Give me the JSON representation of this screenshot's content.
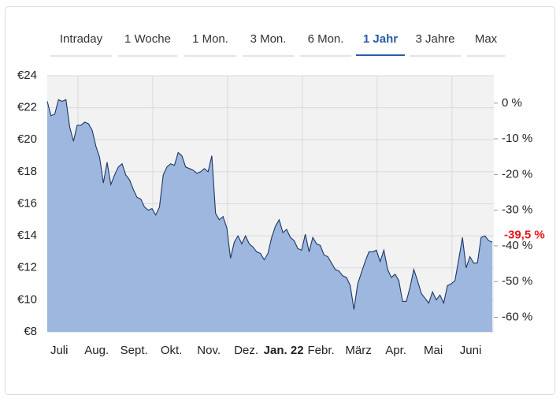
{
  "tabs": {
    "items": [
      "Intraday",
      "1 Woche",
      "1 Mon.",
      "3 Mon.",
      "6 Mon.",
      "1 Jahr",
      "3 Jahre",
      "Max"
    ],
    "active": 5
  },
  "chart_data": {
    "type": "area",
    "xlim": [
      0.18,
      12.12
    ],
    "xticks": [
      {
        "value": 0.5,
        "label": "Juli"
      },
      {
        "value": 1.5,
        "label": "Aug."
      },
      {
        "value": 2.5,
        "label": "Sept."
      },
      {
        "value": 3.5,
        "label": "Okt."
      },
      {
        "value": 4.5,
        "label": "Nov."
      },
      {
        "value": 5.5,
        "label": "Dez."
      },
      {
        "value": 6.5,
        "label": "Jan. 22",
        "bold": true
      },
      {
        "value": 7.5,
        "label": "Febr."
      },
      {
        "value": 8.5,
        "label": "März"
      },
      {
        "value": 9.5,
        "label": "Apr."
      },
      {
        "value": 10.5,
        "label": "Mai"
      },
      {
        "value": 11.5,
        "label": "Juni"
      }
    ],
    "xgrid": [
      1,
      3,
      5,
      7,
      9,
      11
    ],
    "ylim": [
      8,
      24
    ],
    "yticks": [
      {
        "value": 8,
        "label": "€8"
      },
      {
        "value": 10,
        "label": "€10"
      },
      {
        "value": 12,
        "label": "€12"
      },
      {
        "value": 14,
        "label": "€14"
      },
      {
        "value": 16,
        "label": "€16"
      },
      {
        "value": 18,
        "label": "€18"
      },
      {
        "value": 20,
        "label": "€20"
      },
      {
        "value": 22,
        "label": "€22"
      },
      {
        "value": 24,
        "label": "€24"
      }
    ],
    "y2lim": [
      -64.1,
      7.7
    ],
    "y2ticks": [
      {
        "value": 0,
        "label": "0 %"
      },
      {
        "value": -10,
        "label": "-10 %"
      },
      {
        "value": -20,
        "label": "-20 %"
      },
      {
        "value": -30,
        "label": "-30 %"
      },
      {
        "value": -40,
        "label": "-40 %"
      },
      {
        "value": -50,
        "label": "-50 %"
      },
      {
        "value": -60,
        "label": "-60 %"
      }
    ],
    "annotations": [
      {
        "value": -39.5,
        "label": "-39,5 %",
        "axis": "y2",
        "color": "#e8141b"
      }
    ],
    "grid": true,
    "line_color": "#1b3766",
    "fill_color": "#9db7de",
    "background": "#f2f2f2",
    "x": [
      0.18,
      0.28,
      0.38,
      0.48,
      0.58,
      0.68,
      0.78,
      0.88,
      0.98,
      1.08,
      1.18,
      1.28,
      1.38,
      1.48,
      1.58,
      1.68,
      1.78,
      1.88,
      1.98,
      2.08,
      2.18,
      2.28,
      2.38,
      2.48,
      2.58,
      2.68,
      2.78,
      2.88,
      2.98,
      3.08,
      3.18,
      3.28,
      3.38,
      3.48,
      3.58,
      3.68,
      3.78,
      3.88,
      3.98,
      4.08,
      4.18,
      4.28,
      4.38,
      4.48,
      4.58,
      4.68,
      4.78,
      4.88,
      4.98,
      5.08,
      5.18,
      5.28,
      5.38,
      5.48,
      5.58,
      5.68,
      5.78,
      5.88,
      5.98,
      6.08,
      6.18,
      6.28,
      6.38,
      6.48,
      6.58,
      6.68,
      6.78,
      6.88,
      6.98,
      7.08,
      7.18,
      7.28,
      7.38,
      7.48,
      7.58,
      7.68,
      7.78,
      7.88,
      7.98,
      8.08,
      8.18,
      8.28,
      8.38,
      8.48,
      8.58,
      8.68,
      8.78,
      8.88,
      8.98,
      9.08,
      9.18,
      9.28,
      9.38,
      9.48,
      9.58,
      9.68,
      9.78,
      9.88,
      9.98,
      10.08,
      10.18,
      10.28,
      10.38,
      10.48,
      10.58,
      10.68,
      10.78,
      10.88,
      10.98,
      11.08,
      11.18,
      11.28,
      11.38,
      11.48,
      11.58,
      11.68,
      11.78,
      11.88,
      11.98,
      12.08
    ],
    "values": [
      22.4,
      21.5,
      21.6,
      22.5,
      22.4,
      22.5,
      20.8,
      19.9,
      20.9,
      20.9,
      21.1,
      21.0,
      20.6,
      19.6,
      18.9,
      17.3,
      18.6,
      17.2,
      17.8,
      18.3,
      18.5,
      17.8,
      17.5,
      16.9,
      16.4,
      16.3,
      15.8,
      15.6,
      15.7,
      15.3,
      15.8,
      17.8,
      18.3,
      18.5,
      18.4,
      19.2,
      19.0,
      18.3,
      18.2,
      18.1,
      17.9,
      18.0,
      18.2,
      18.0,
      19.0,
      15.4,
      15.0,
      15.2,
      14.5,
      12.6,
      13.6,
      14.0,
      13.5,
      14.0,
      13.5,
      13.3,
      13.0,
      12.9,
      12.5,
      12.9,
      13.9,
      14.6,
      15.0,
      14.2,
      14.4,
      13.9,
      13.7,
      13.2,
      13.1,
      14.1,
      13.0,
      13.9,
      13.5,
      13.4,
      12.8,
      12.7,
      12.3,
      11.9,
      11.8,
      11.5,
      11.4,
      10.9,
      9.4,
      11.0,
      11.7,
      12.4,
      13.0,
      13.0,
      13.1,
      12.4,
      13.1,
      11.9,
      11.4,
      11.6,
      11.2,
      9.9,
      9.9,
      10.8,
      11.9,
      11.2,
      10.4,
      10.1,
      9.8,
      10.5,
      10.0,
      10.3,
      9.8,
      10.9,
      11.0,
      11.2,
      12.5,
      13.9,
      12.0,
      12.7,
      12.3,
      12.3,
      13.9,
      14.0,
      13.7,
      13.6
    ]
  }
}
